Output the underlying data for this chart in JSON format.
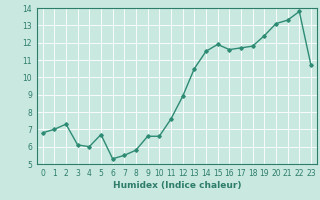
{
  "x": [
    0,
    1,
    2,
    3,
    4,
    5,
    6,
    7,
    8,
    9,
    10,
    11,
    12,
    13,
    14,
    15,
    16,
    17,
    18,
    19,
    20,
    21,
    22,
    23
  ],
  "y": [
    6.8,
    7.0,
    7.3,
    6.1,
    6.0,
    6.7,
    5.3,
    5.5,
    5.8,
    6.6,
    6.6,
    7.6,
    8.9,
    10.5,
    11.5,
    11.9,
    11.6,
    11.7,
    11.8,
    12.4,
    13.1,
    13.3,
    13.8,
    10.7
  ],
  "line_color": "#2e8b74",
  "marker": "D",
  "marker_size": 1.8,
  "line_width": 1.0,
  "xlabel": "Humidex (Indice chaleur)",
  "xlim": [
    -0.5,
    23.5
  ],
  "ylim": [
    5,
    14
  ],
  "yticks": [
    5,
    6,
    7,
    8,
    9,
    10,
    11,
    12,
    13,
    14
  ],
  "xticks": [
    0,
    1,
    2,
    3,
    4,
    5,
    6,
    7,
    8,
    9,
    10,
    11,
    12,
    13,
    14,
    15,
    16,
    17,
    18,
    19,
    20,
    21,
    22,
    23
  ],
  "bg_color": "#c8e8e0",
  "grid_color": "#ffffff",
  "tick_fontsize": 5.5,
  "xlabel_fontsize": 6.5,
  "label_color": "#2e7d6a"
}
